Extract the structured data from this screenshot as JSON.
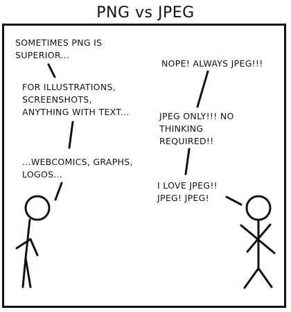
{
  "comic": {
    "title": "PNG vs JPEG",
    "left_character": {
      "lines": [
        "SOMETIMES PNG IS\nSUPERIOR...",
        "FOR ILLUSTRATIONS,\nSCREENSHOTS,\nANYTHING WITH TEXT...",
        "...WEBCOMICS, GRAPHS,\nLOGOS..."
      ]
    },
    "right_character": {
      "lines": [
        "NOPE! ALWAYS JPEG!!!",
        "JPEG ONLY!!! NO\nTHINKING\nREQUIRED!!",
        "I LOVE JPEG!!\nJPEG! JPEG!"
      ]
    }
  }
}
